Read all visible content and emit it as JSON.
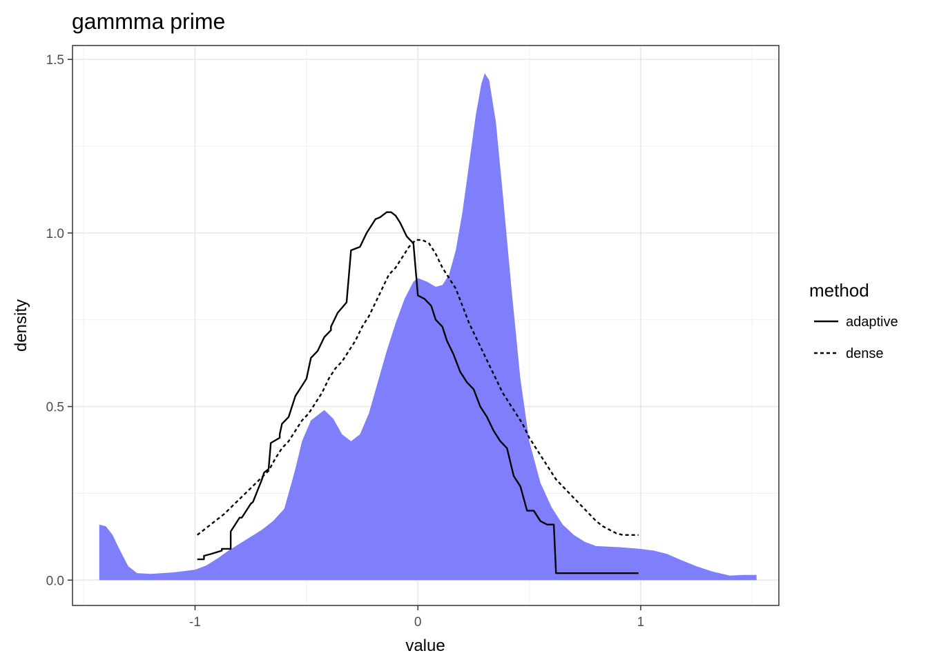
{
  "chart_data": {
    "type": "area",
    "title": "gammma prime",
    "xlabel": "value",
    "ylabel": "density",
    "xlim": [
      -1.55,
      1.62
    ],
    "ylim": [
      -0.073,
      1.54
    ],
    "x_ticks": [
      -1,
      0,
      1
    ],
    "x_tick_labels": [
      "-1",
      "0",
      "1"
    ],
    "x_minor_ticks": [
      -1.5,
      -0.5,
      0.5,
      1.5
    ],
    "y_ticks": [
      0,
      0.5,
      1,
      1.5
    ],
    "y_tick_labels": [
      "0.0",
      "0.5",
      "1.0",
      "1.5"
    ],
    "y_minor_ticks": [
      0.25,
      0.75,
      1.25
    ],
    "grid": true,
    "legend": {
      "title": "method",
      "position": "right",
      "entries": [
        {
          "label": "adaptive",
          "linetype": "solid"
        },
        {
          "label": "dense",
          "linetype": "dashed"
        }
      ]
    },
    "area": {
      "color": "#7f7ffc",
      "points": [
        [
          -1.43,
          0.0
        ],
        [
          -1.43,
          0.16
        ],
        [
          -1.4,
          0.155
        ],
        [
          -1.37,
          0.13
        ],
        [
          -1.34,
          0.09
        ],
        [
          -1.3,
          0.04
        ],
        [
          -1.26,
          0.02
        ],
        [
          -1.2,
          0.018
        ],
        [
          -1.1,
          0.022
        ],
        [
          -1.0,
          0.03
        ],
        [
          -0.95,
          0.042
        ],
        [
          -0.9,
          0.062
        ],
        [
          -0.85,
          0.085
        ],
        [
          -0.8,
          0.105
        ],
        [
          -0.75,
          0.125
        ],
        [
          -0.7,
          0.145
        ],
        [
          -0.65,
          0.17
        ],
        [
          -0.6,
          0.205
        ],
        [
          -0.58,
          0.25
        ],
        [
          -0.55,
          0.32
        ],
        [
          -0.52,
          0.4
        ],
        [
          -0.48,
          0.46
        ],
        [
          -0.42,
          0.49
        ],
        [
          -0.38,
          0.465
        ],
        [
          -0.34,
          0.42
        ],
        [
          -0.3,
          0.4
        ],
        [
          -0.26,
          0.42
        ],
        [
          -0.22,
          0.48
        ],
        [
          -0.18,
          0.57
        ],
        [
          -0.14,
          0.66
        ],
        [
          -0.1,
          0.74
        ],
        [
          -0.06,
          0.81
        ],
        [
          -0.02,
          0.86
        ],
        [
          0.0,
          0.87
        ],
        [
          0.04,
          0.86
        ],
        [
          0.08,
          0.845
        ],
        [
          0.11,
          0.85
        ],
        [
          0.14,
          0.88
        ],
        [
          0.17,
          0.95
        ],
        [
          0.2,
          1.06
        ],
        [
          0.23,
          1.2
        ],
        [
          0.26,
          1.34
        ],
        [
          0.285,
          1.43
        ],
        [
          0.3,
          1.46
        ],
        [
          0.32,
          1.44
        ],
        [
          0.35,
          1.32
        ],
        [
          0.38,
          1.12
        ],
        [
          0.42,
          0.84
        ],
        [
          0.46,
          0.58
        ],
        [
          0.5,
          0.4
        ],
        [
          0.55,
          0.28
        ],
        [
          0.6,
          0.21
        ],
        [
          0.65,
          0.16
        ],
        [
          0.7,
          0.13
        ],
        [
          0.75,
          0.11
        ],
        [
          0.8,
          0.098
        ],
        [
          0.9,
          0.095
        ],
        [
          1.0,
          0.09
        ],
        [
          1.06,
          0.085
        ],
        [
          1.12,
          0.075
        ],
        [
          1.18,
          0.058
        ],
        [
          1.25,
          0.04
        ],
        [
          1.32,
          0.025
        ],
        [
          1.4,
          0.013
        ],
        [
          1.46,
          0.015
        ],
        [
          1.52,
          0.015
        ],
        [
          1.52,
          0.0
        ]
      ]
    },
    "series": [
      {
        "name": "adaptive",
        "linetype": "solid",
        "x": [
          -0.99,
          -0.96,
          -0.96,
          -0.93,
          -0.93,
          -0.88,
          -0.88,
          -0.84,
          -0.84,
          -0.8,
          -0.79,
          -0.75,
          -0.74,
          -0.7,
          -0.69,
          -0.67,
          -0.66,
          -0.62,
          -0.62,
          -0.61,
          -0.58,
          -0.55,
          -0.53,
          -0.5,
          -0.48,
          -0.45,
          -0.42,
          -0.39,
          -0.39,
          -0.36,
          -0.32,
          -0.3,
          -0.26,
          -0.23,
          -0.21,
          -0.19,
          -0.17,
          -0.14,
          -0.12,
          -0.1,
          -0.08,
          -0.05,
          -0.02,
          0.0,
          0.03,
          0.06,
          0.08,
          0.11,
          0.13,
          0.16,
          0.19,
          0.22,
          0.25,
          0.28,
          0.31,
          0.34,
          0.37,
          0.4,
          0.43,
          0.46,
          0.49,
          0.52,
          0.55,
          0.58,
          0.61,
          0.62,
          0.66,
          0.68,
          0.72,
          0.74,
          0.79,
          0.81,
          0.81,
          0.99
        ],
        "y": [
          0.06,
          0.06,
          0.07,
          0.075,
          0.075,
          0.085,
          0.09,
          0.09,
          0.14,
          0.18,
          0.18,
          0.22,
          0.225,
          0.29,
          0.31,
          0.32,
          0.395,
          0.41,
          0.42,
          0.45,
          0.47,
          0.53,
          0.55,
          0.58,
          0.64,
          0.66,
          0.7,
          0.72,
          0.73,
          0.77,
          0.8,
          0.95,
          0.96,
          1.0,
          1.02,
          1.04,
          1.045,
          1.06,
          1.06,
          1.05,
          1.03,
          0.99,
          0.97,
          0.82,
          0.81,
          0.79,
          0.75,
          0.73,
          0.69,
          0.65,
          0.6,
          0.57,
          0.55,
          0.5,
          0.47,
          0.43,
          0.4,
          0.38,
          0.3,
          0.27,
          0.2,
          0.2,
          0.17,
          0.16,
          0.16,
          0.02,
          0.02,
          0.02,
          0.02,
          0.02,
          0.02,
          0.02,
          0.02,
          0.02
        ]
      },
      {
        "name": "dense",
        "linetype": "dashed",
        "x": [
          -0.99,
          -0.95,
          -0.91,
          -0.87,
          -0.83,
          -0.79,
          -0.75,
          -0.71,
          -0.67,
          -0.64,
          -0.61,
          -0.58,
          -0.55,
          -0.52,
          -0.49,
          -0.46,
          -0.43,
          -0.4,
          -0.37,
          -0.34,
          -0.31,
          -0.28,
          -0.25,
          -0.22,
          -0.19,
          -0.16,
          -0.13,
          -0.1,
          -0.07,
          -0.04,
          -0.01,
          0.02,
          0.05,
          0.08,
          0.11,
          0.14,
          0.17,
          0.2,
          0.23,
          0.26,
          0.29,
          0.32,
          0.35,
          0.38,
          0.41,
          0.44,
          0.47,
          0.5,
          0.53,
          0.56,
          0.59,
          0.62,
          0.65,
          0.68,
          0.71,
          0.74,
          0.77,
          0.8,
          0.83,
          0.86,
          0.89,
          0.92,
          0.95,
          0.99
        ],
        "y": [
          0.13,
          0.15,
          0.17,
          0.19,
          0.215,
          0.24,
          0.265,
          0.29,
          0.315,
          0.35,
          0.38,
          0.4,
          0.43,
          0.46,
          0.48,
          0.51,
          0.54,
          0.58,
          0.61,
          0.63,
          0.66,
          0.69,
          0.73,
          0.76,
          0.8,
          0.84,
          0.88,
          0.9,
          0.93,
          0.96,
          0.98,
          0.98,
          0.97,
          0.94,
          0.9,
          0.87,
          0.84,
          0.79,
          0.74,
          0.7,
          0.66,
          0.62,
          0.58,
          0.54,
          0.51,
          0.48,
          0.45,
          0.41,
          0.38,
          0.35,
          0.32,
          0.29,
          0.27,
          0.25,
          0.23,
          0.21,
          0.19,
          0.17,
          0.155,
          0.145,
          0.135,
          0.13,
          0.13,
          0.13
        ]
      }
    ]
  }
}
